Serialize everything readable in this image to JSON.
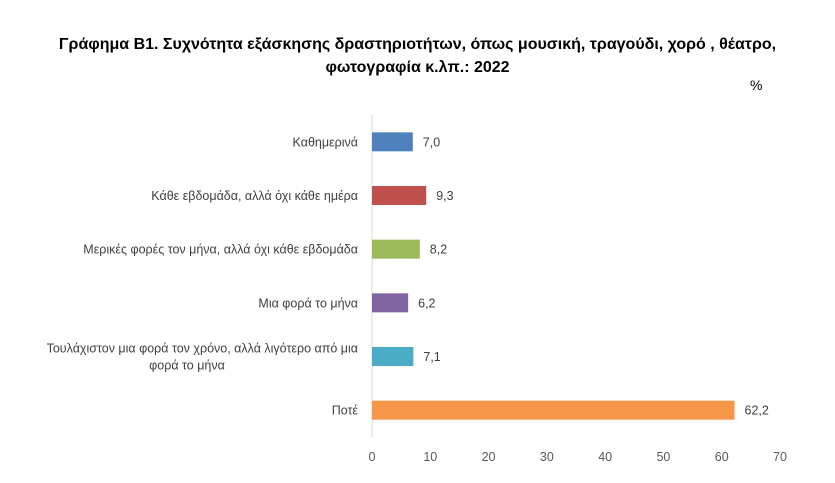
{
  "chart_data": {
    "type": "bar",
    "orientation": "horizontal",
    "title": "Γράφημα Β1. Συχνότητα εξάσκησης δραστηριοτήτων, όπως μουσική, τραγούδι, χορό , θέατρο, φωτογραφία κ.λπ.: 2022",
    "title_lines": [
      "Γράφημα Β1. Συχνότητα εξάσκησης δραστηριοτήτων, όπως μουσική, τραγούδι, χορό , θέατρο,",
      "φωτογραφία κ.λπ.: 2022"
    ],
    "unit": "%",
    "categories": [
      "Καθημερινά",
      "Κάθε εβδομάδα, αλλά όχι κάθε ημέρα",
      "Μερικές φορές τον μήνα, αλλά όχι κάθε εβδομάδα",
      "Μια φορά το μήνα",
      "Τουλάχιστον μια φορά τον χρόνο, αλλά λιγότερο από μια φορά το μήνα",
      "Ποτέ"
    ],
    "category_lines": [
      [
        "Καθημερινά"
      ],
      [
        "Κάθε εβδομάδα, αλλά όχι κάθε ημέρα"
      ],
      [
        "Μερικές φορές τον μήνα, αλλά όχι κάθε εβδομάδα"
      ],
      [
        "Μια φορά το μήνα"
      ],
      [
        "Τουλάχιστον μια φορά τον χρόνο, αλλά λιγότερο από μια",
        "φορά το μήνα"
      ],
      [
        "Ποτέ"
      ]
    ],
    "values": [
      7.0,
      9.3,
      8.2,
      6.2,
      7.1,
      62.2
    ],
    "data_labels": [
      "7,0",
      "9,3",
      "8,2",
      "6,2",
      "7,1",
      "62,2"
    ],
    "colors": [
      "#4f81bd",
      "#c0504d",
      "#9bbb59",
      "#8064a2",
      "#4bacc6",
      "#f79646"
    ],
    "xlim": [
      0,
      70
    ],
    "xticks": [
      0,
      10,
      20,
      30,
      40,
      50,
      60,
      70
    ],
    "grid": false,
    "legend": "none"
  }
}
